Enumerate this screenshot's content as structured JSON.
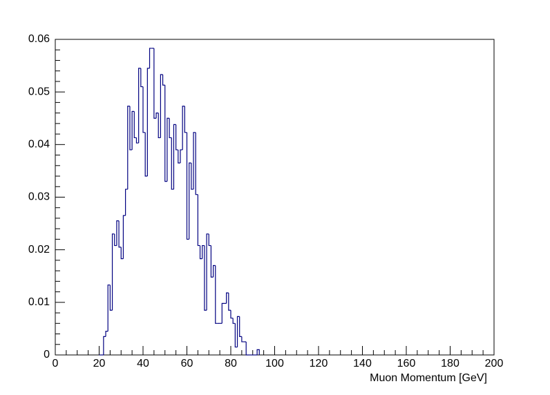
{
  "chart_data": {
    "type": "histogram",
    "x_label": "Muon Momentum [GeV]",
    "bins": [
      20,
      21,
      22,
      23,
      24,
      25,
      26,
      27,
      28,
      29,
      30,
      31,
      32,
      33,
      34,
      35,
      36,
      37,
      38,
      39,
      40,
      41,
      42,
      43,
      44,
      45,
      46,
      47,
      48,
      49,
      50,
      51,
      52,
      53,
      54,
      55,
      56,
      57,
      58,
      59,
      60,
      61,
      62,
      63,
      64,
      65,
      66,
      67,
      68,
      69,
      70,
      71,
      72,
      73,
      74,
      75,
      76,
      77,
      78,
      79,
      80,
      81,
      82,
      83,
      84,
      85,
      86,
      87,
      88,
      89,
      90,
      91,
      92,
      93
    ],
    "values": [
      0,
      0,
      0.0035,
      0.0045,
      0.0133,
      0.0085,
      0.023,
      0.0208,
      0.0255,
      0.0205,
      0.0183,
      0.0265,
      0.0315,
      0.0473,
      0.039,
      0.0463,
      0.0413,
      0.0403,
      0.0545,
      0.051,
      0.0423,
      0.034,
      0.0545,
      0.0583,
      0.0583,
      0.045,
      0.046,
      0.0413,
      0.0533,
      0.0513,
      0.033,
      0.045,
      0.0413,
      0.0315,
      0.0438,
      0.039,
      0.0365,
      0.039,
      0.0473,
      0.0423,
      0.022,
      0.0365,
      0.0315,
      0.0423,
      0.0305,
      0.0208,
      0.0183,
      0.0208,
      0.0085,
      0.023,
      0.0208,
      0.0148,
      0.017,
      0.006,
      0.006,
      0.006,
      0.0098,
      0.0098,
      0.0118,
      0.0085,
      0.007,
      0.006,
      0.0015,
      0.0073,
      0.0035,
      0.0025,
      0.0025,
      0,
      0,
      0,
      0,
      0,
      0.001
    ],
    "color": "#000080",
    "xlim": [
      0,
      200
    ],
    "xticks": [
      0,
      20,
      40,
      60,
      80,
      100,
      120,
      140,
      160,
      180,
      200
    ],
    "ylim": [
      0,
      0.06
    ],
    "yticks": [
      0,
      0.01,
      0.02,
      0.03,
      0.04,
      0.05,
      0.06
    ]
  }
}
